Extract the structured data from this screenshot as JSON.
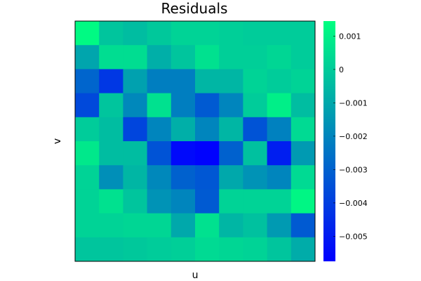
{
  "chart_data": {
    "type": "heatmap",
    "title": "Residuals",
    "xlabel": "u",
    "ylabel": "v",
    "colormap": "winter",
    "colormap_low": "#0000ff",
    "colormap_high": "#00ff80",
    "clim": [
      -0.00575,
      0.00145
    ],
    "colorbar_ticks": [
      0.001,
      0,
      -0.001,
      -0.002,
      -0.003,
      -0.004,
      -0.005
    ],
    "colorbar_tick_labels": [
      "0.001",
      "0",
      "−0.001",
      "−0.002",
      "−0.003",
      "−0.004",
      "−0.005"
    ],
    "grid": false,
    "rows": 10,
    "cols": 10,
    "values": [
      [
        0.0013,
        -0.0002,
        -0.0004,
        -0.0001,
        0.0002,
        0.0002,
        0.0001,
        0.0,
        0.0,
        0.0
      ],
      [
        -0.0011,
        0.0005,
        0.0005,
        -0.0008,
        -0.0002,
        0.0006,
        0.0001,
        0.0001,
        0.0003,
        0.0
      ],
      [
        -0.0029,
        -0.0042,
        -0.0012,
        -0.0022,
        -0.0022,
        -0.0006,
        -0.0006,
        0.0002,
        0.0,
        0.0002
      ],
      [
        -0.0037,
        -0.0002,
        -0.0019,
        0.0006,
        -0.0022,
        -0.0032,
        -0.002,
        0.0,
        0.001,
        -0.0004
      ],
      [
        0.0,
        -0.0004,
        -0.0038,
        -0.002,
        -0.0008,
        -0.002,
        -0.0006,
        -0.0034,
        -0.0021,
        0.0004
      ],
      [
        0.0008,
        -0.0004,
        -0.0004,
        -0.0034,
        -0.0055,
        -0.0057,
        -0.003,
        -0.0003,
        -0.0049,
        -0.0014
      ],
      [
        0.0002,
        -0.0017,
        -0.0006,
        -0.0019,
        -0.003,
        -0.0033,
        -0.001,
        -0.0016,
        -0.002,
        0.0004
      ],
      [
        0.0002,
        0.0006,
        -0.0002,
        -0.0016,
        -0.002,
        -0.0032,
        0.0002,
        0.0002,
        0.0002,
        0.0012
      ],
      [
        0.0002,
        0.0002,
        0.0003,
        0.0003,
        -0.001,
        0.0006,
        -0.0006,
        -0.0003,
        -0.0014,
        -0.0032
      ],
      [
        -0.0002,
        -0.0002,
        -0.0001,
        0.0,
        0.0001,
        0.0004,
        0.0003,
        0.0002,
        -0.0002,
        -0.0009
      ]
    ]
  }
}
